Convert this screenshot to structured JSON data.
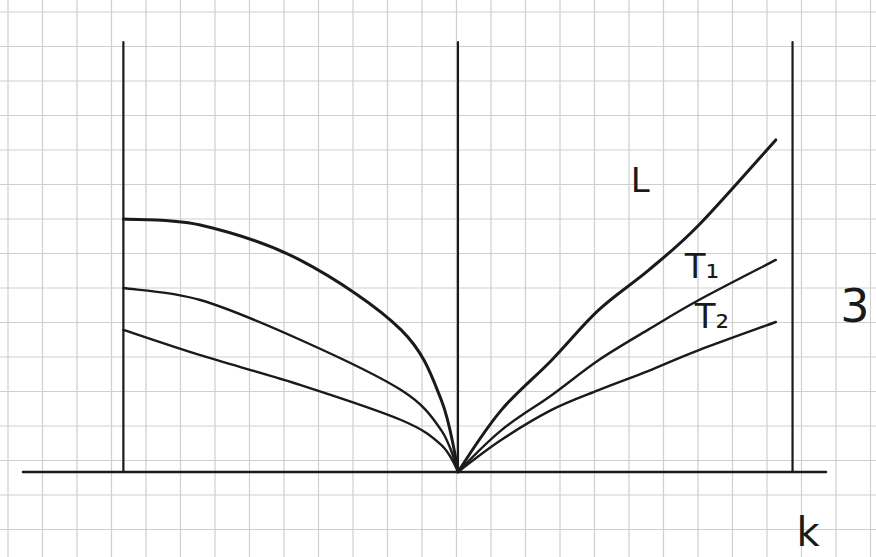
{
  "chart_data": {
    "type": "line",
    "x_label": "k",
    "annotation": "3",
    "x": [
      -1,
      -0.77,
      -0.47,
      -0.17,
      -0.05,
      0,
      0.13,
      0.28,
      0.42,
      0.57,
      0.72,
      0.95
    ],
    "series": [
      {
        "name": "L",
        "color": "#1a1a1a",
        "values": [
          5.5,
          5.37,
          4.6,
          3.09,
          1.57,
          0,
          1.35,
          2.43,
          3.52,
          4.39,
          5.37,
          7.22
        ]
      },
      {
        "name": "T₁",
        "color": "#1a1a1a",
        "values": [
          4.0,
          3.74,
          2.87,
          1.78,
          0.91,
          0,
          0.91,
          1.67,
          2.43,
          3.1,
          3.74,
          4.61
        ]
      },
      {
        "name": "T₂",
        "color": "#1a1a1a",
        "values": [
          3.09,
          2.54,
          1.89,
          1.13,
          0.59,
          0,
          0.7,
          1.35,
          1.78,
          2.2,
          2.65,
          3.26
        ]
      }
    ],
    "xlim": [
      -1.3,
      1.1
    ],
    "ylim": [
      0,
      10
    ],
    "xticks": [
      -1,
      0,
      1
    ],
    "yticks": [],
    "grid": true,
    "tick_labels": false
  }
}
